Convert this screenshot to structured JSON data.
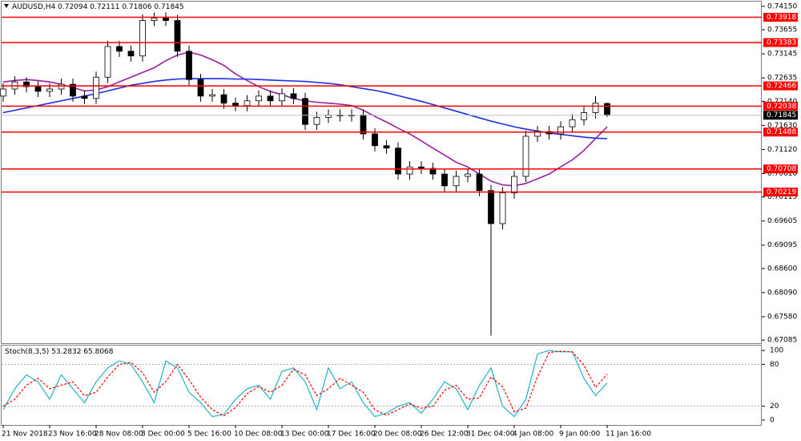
{
  "chart_data": [
    {
      "type": "candlestick",
      "symbol": "AUDUSD,H4",
      "categories": [
        "21 Nov 2018",
        null,
        null,
        null,
        "23 Nov 16:00",
        null,
        null,
        null,
        "28 Nov 08:00",
        null,
        null,
        null,
        "3 Dec 00:00",
        null,
        null,
        null,
        "5 Dec 16:00",
        null,
        null,
        null,
        "10 Dec 08:00",
        null,
        null,
        null,
        "13 Dec 00:00",
        null,
        null,
        null,
        "17 Dec 16:00",
        null,
        null,
        null,
        "20 Dec 08:00",
        null,
        null,
        null,
        "26 Dec 12:00",
        null,
        null,
        null,
        "31 Dec 04:00",
        null,
        null,
        null,
        "4 Jan 08:00",
        null,
        null,
        null,
        "9 Jan 00:00",
        null,
        null,
        null,
        "11 Jan 16:00"
      ],
      "open": [
        0.7225,
        0.724,
        0.7255,
        0.7245,
        0.7235,
        0.724,
        0.725,
        0.7225,
        0.722,
        0.7265,
        0.733,
        0.732,
        0.731,
        0.7385,
        0.739,
        0.7385,
        0.732,
        0.726,
        0.7225,
        0.7228,
        0.721,
        0.7205,
        0.7215,
        0.7225,
        0.7215,
        0.723,
        0.722,
        0.7165,
        0.718,
        0.7185,
        0.7183,
        0.7185,
        0.7145,
        0.712,
        0.7115,
        0.706,
        0.7075,
        0.7072,
        0.706,
        0.7035,
        0.7055,
        0.706,
        0.7025,
        0.6955,
        0.702,
        0.7055,
        0.714,
        0.715,
        0.7145,
        0.716,
        0.7175,
        0.719,
        0.72094
      ],
      "high": [
        0.7252,
        0.7267,
        0.7265,
        0.7257,
        0.7252,
        0.7262,
        0.7262,
        0.7237,
        0.7277,
        0.7342,
        0.7342,
        0.7332,
        0.7398,
        0.7402,
        0.7402,
        0.7397,
        0.7332,
        0.7272,
        0.724,
        0.724,
        0.7222,
        0.7227,
        0.7237,
        0.7237,
        0.7242,
        0.7242,
        0.7232,
        0.7192,
        0.7197,
        0.7197,
        0.7197,
        0.7197,
        0.7157,
        0.7132,
        0.7127,
        0.7087,
        0.7087,
        0.7084,
        0.7072,
        0.7067,
        0.7072,
        0.7072,
        0.7037,
        0.7032,
        0.7067,
        0.7152,
        0.7162,
        0.7162,
        0.7172,
        0.7187,
        0.7202,
        0.7225,
        0.72111
      ],
      "low": [
        0.7213,
        0.7228,
        0.7233,
        0.7223,
        0.7223,
        0.7228,
        0.7213,
        0.7208,
        0.7208,
        0.7253,
        0.7308,
        0.7298,
        0.7298,
        0.7373,
        0.7373,
        0.7308,
        0.7248,
        0.7213,
        0.7213,
        0.7198,
        0.7193,
        0.7193,
        0.7203,
        0.7203,
        0.7203,
        0.7208,
        0.7153,
        0.7153,
        0.7168,
        0.7171,
        0.7171,
        0.7133,
        0.7108,
        0.7103,
        0.7048,
        0.7048,
        0.706,
        0.7048,
        0.7023,
        0.7023,
        0.7043,
        0.7013,
        0.6718,
        0.6943,
        0.7008,
        0.7043,
        0.7128,
        0.7133,
        0.7133,
        0.7148,
        0.7163,
        0.7178,
        0.71806
      ],
      "close": [
        0.724,
        0.7255,
        0.7245,
        0.7235,
        0.724,
        0.725,
        0.7225,
        0.722,
        0.7265,
        0.733,
        0.732,
        0.731,
        0.7385,
        0.739,
        0.7385,
        0.732,
        0.726,
        0.7225,
        0.7228,
        0.721,
        0.7205,
        0.7215,
        0.7225,
        0.7215,
        0.723,
        0.722,
        0.7165,
        0.718,
        0.7185,
        0.7183,
        0.7185,
        0.7145,
        0.712,
        0.7115,
        0.706,
        0.7075,
        0.7072,
        0.706,
        0.7035,
        0.7055,
        0.706,
        0.7025,
        0.6955,
        0.702,
        0.7055,
        0.714,
        0.715,
        0.7145,
        0.716,
        0.7175,
        0.719,
        0.721,
        0.71845
      ],
      "series": [
        {
          "color": "#9b1fa0",
          "values": [
            0.7255,
            0.7258,
            0.726,
            0.7258,
            0.7255,
            0.725,
            0.7243,
            0.7236,
            0.7238,
            0.7245,
            0.7255,
            0.7265,
            0.7275,
            0.7285,
            0.73,
            0.7312,
            0.7318,
            0.7312,
            0.7302,
            0.729,
            0.7272,
            0.7258,
            0.7245,
            0.7235,
            0.7228,
            0.722,
            0.7215,
            0.7212,
            0.721,
            0.7208,
            0.7205,
            0.7195,
            0.7182,
            0.717,
            0.7157,
            0.7145,
            0.713,
            0.7115,
            0.71,
            0.7085,
            0.7075,
            0.706,
            0.7045,
            0.7037,
            0.7035,
            0.704,
            0.705,
            0.706,
            0.7075,
            0.709,
            0.711,
            0.7135,
            0.716
          ]
        },
        {
          "color": "#1f2ee6",
          "values": [
            0.719,
            0.7195,
            0.72,
            0.7205,
            0.721,
            0.7215,
            0.722,
            0.7225,
            0.723,
            0.7236,
            0.7242,
            0.7248,
            0.7252,
            0.7256,
            0.7259,
            0.7261,
            0.7262,
            0.7262,
            0.7262,
            0.7262,
            0.7261,
            0.7261,
            0.726,
            0.7259,
            0.7258,
            0.7257,
            0.7256,
            0.7254,
            0.7252,
            0.7249,
            0.7245,
            0.7241,
            0.7237,
            0.7232,
            0.7226,
            0.722,
            0.7214,
            0.7207,
            0.72,
            0.7193,
            0.7186,
            0.7179,
            0.7172,
            0.7166,
            0.716,
            0.7155,
            0.7151,
            0.7147,
            0.7144,
            0.7141,
            0.7138,
            0.7136,
            0.7135
          ]
        }
      ],
      "levels": [
        0.73918,
        0.73383,
        0.72466,
        0.72038,
        0.71488,
        0.70708,
        0.70219
      ],
      "level_color": "#ff0000",
      "ylim": [
        0.6702,
        0.7425
      ],
      "yticks": [
        {
          "value": 0.7415,
          "label": "0.74150"
        },
        0.73655,
        0.73145,
        0.72635,
        {
          "value": 0.7214,
          "label": "0.72140"
        },
        {
          "value": 0.7163,
          "label": "0.71630"
        },
        {
          "value": 0.7112,
          "label": "0.71120"
        },
        {
          "value": 0.7061,
          "label": "0.70610"
        },
        0.70115,
        0.69605,
        0.69095,
        {
          "value": 0.686,
          "label": "0.68600"
        },
        {
          "value": 0.6809,
          "label": "0.68090"
        },
        {
          "value": 0.6758,
          "label": "0.67580"
        },
        0.67085
      ]
    },
    {
      "type": "line",
      "title": "Stoch(8,3,5)",
      "series": [
        {
          "color": "#20b2c8",
          "values": [
            15,
            45,
            65,
            55,
            30,
            65,
            45,
            25,
            55,
            75,
            85,
            80,
            55,
            25,
            85,
            75,
            40,
            25,
            5,
            8,
            30,
            45,
            50,
            30,
            70,
            75,
            55,
            15,
            75,
            45,
            55,
            25,
            5,
            10,
            20,
            25,
            10,
            30,
            55,
            45,
            15,
            50,
            75,
            20,
            5,
            30,
            95,
            100,
            98,
            98,
            60,
            35,
            53.2832
          ]
        },
        {
          "color": "#ff0000",
          "dashed": true,
          "values": [
            20,
            30,
            50,
            60,
            45,
            50,
            55,
            35,
            40,
            62,
            80,
            83,
            68,
            40,
            55,
            80,
            58,
            33,
            15,
            6,
            18,
            38,
            48,
            40,
            50,
            73,
            65,
            35,
            45,
            60,
            50,
            40,
            15,
            7,
            15,
            23,
            17,
            20,
            43,
            50,
            30,
            32,
            62,
            48,
            12,
            17,
            62,
            97,
            99,
            98,
            79,
            47,
            65.8068
          ]
        }
      ],
      "ylim": [
        -7,
        107
      ],
      "yticks": [
        0,
        20,
        80,
        100
      ],
      "levels": [
        20,
        80
      ]
    }
  ]
}
